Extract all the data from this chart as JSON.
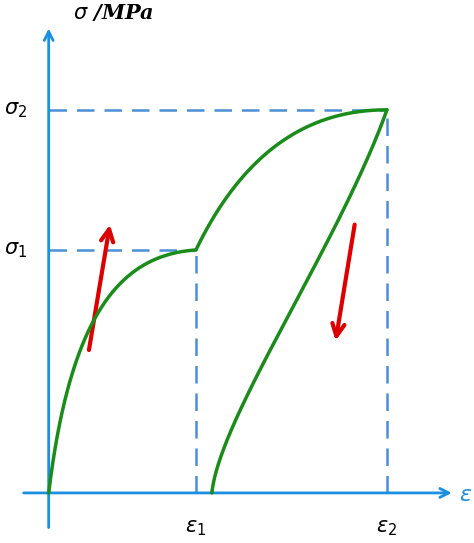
{
  "axis_color": "#1B8FE0",
  "curve_color": "#1A8C1A",
  "dashed_color": "#4B8FD4",
  "arrow_color": "#DD0000",
  "background_color": "#FFFFFF",
  "eps1": 0.37,
  "eps2": 0.85,
  "sigma1": 0.52,
  "sigma2": 0.82,
  "xlim_data": [
    0,
    1.02
  ],
  "ylim_data": [
    0,
    1.0
  ],
  "figsize": [
    4.74,
    5.43
  ],
  "dpi": 100,
  "curve_lw": 2.5,
  "axis_lw": 2.0,
  "dash_lw": 1.8,
  "label_fs": 15,
  "title_fs": 16
}
